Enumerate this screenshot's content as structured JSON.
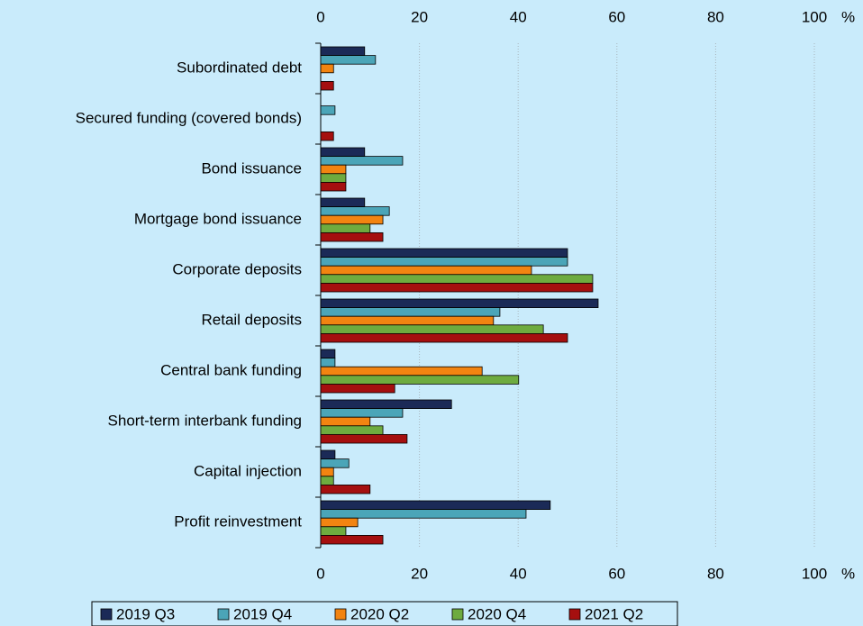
{
  "chart_data": {
    "type": "hbar",
    "categories": [
      "Subordinated debt",
      "Secured funding (covered bonds)",
      "Bond issuance",
      "Mortgage bond issuance",
      "Corporate deposits",
      "Retail deposits",
      "Central bank funding",
      "Short-term interbank funding",
      "Capital injection",
      "Profit reinvestment"
    ],
    "series": [
      {
        "name": "2019 Q3",
        "color": "#1b2a57",
        "values": [
          8.9,
          0,
          8.9,
          8.9,
          50,
          56.2,
          2.9,
          26.5,
          2.9,
          46.5
        ]
      },
      {
        "name": "2019 Q4",
        "color": "#4ba5b8",
        "values": [
          11.1,
          2.9,
          16.6,
          13.9,
          50,
          36.3,
          2.9,
          16.6,
          5.7,
          41.6
        ]
      },
      {
        "name": "2020 Q2",
        "color": "#f28411",
        "values": [
          2.6,
          0,
          5.1,
          12.6,
          42.7,
          35,
          32.7,
          10,
          2.6,
          7.5
        ]
      },
      {
        "name": "2020 Q4",
        "color": "#6eab3f",
        "values": [
          0,
          0,
          5.1,
          10,
          55.1,
          45.1,
          40.1,
          12.6,
          2.6,
          5.1
        ]
      },
      {
        "name": "2021 Q2",
        "color": "#a50f0f",
        "values": [
          2.6,
          2.6,
          5.1,
          12.6,
          55.1,
          50,
          15,
          17.5,
          10,
          12.6
        ]
      }
    ],
    "xlim": [
      0,
      100
    ],
    "xticks": [
      0,
      20,
      40,
      60,
      80,
      100
    ],
    "x_unit": "%",
    "grid": true
  }
}
